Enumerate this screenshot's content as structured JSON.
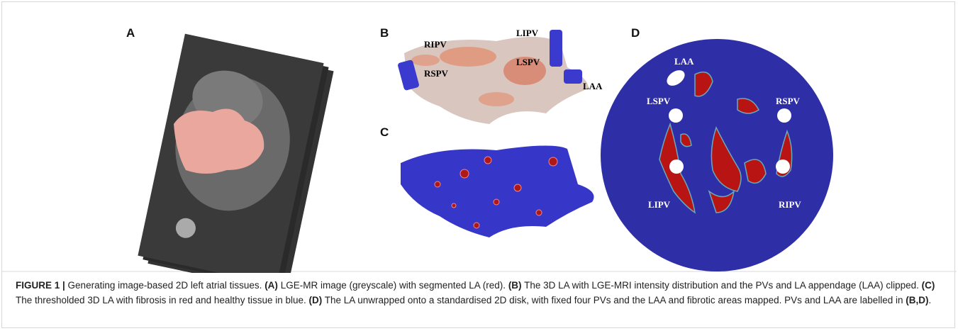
{
  "figure": {
    "panels": {
      "A": {
        "label": "A"
      },
      "B": {
        "label": "B",
        "annotations": [
          "RIPV",
          "LIPV",
          "LSPV",
          "RSPV",
          "LAA"
        ]
      },
      "C": {
        "label": "C"
      },
      "D": {
        "label": "D",
        "annotations": [
          "LAA",
          "LSPV",
          "RSPV",
          "LIPV",
          "RIPV"
        ]
      }
    },
    "caption": [
      {
        "text": "FIGURE 1 | ",
        "bold": true
      },
      {
        "text": "Generating image-based 2D left atrial tissues. ",
        "bold": false
      },
      {
        "text": "(A)",
        "bold": true
      },
      {
        "text": " LGE-MR image (greyscale) with segmented LA (red). ",
        "bold": false
      },
      {
        "text": "(B)",
        "bold": true
      },
      {
        "text": " The 3D LA with LGE-MRI intensity distribution and the PVs and LA appendage (LAA) clipped. ",
        "bold": false
      },
      {
        "text": "(C)",
        "bold": true
      },
      {
        "text": " The thresholded 3D LA with fibrosis in red and healthy tissue in blue. ",
        "bold": false
      },
      {
        "text": "(D)",
        "bold": true
      },
      {
        "text": " The LA unwrapped onto a standardised 2D disk, with fixed four PVs and the LAA and fibrotic areas mapped. PVs and LAA are labelled in ",
        "bold": false
      },
      {
        "text": "(B,D)",
        "bold": true
      },
      {
        "text": ".",
        "bold": false
      }
    ]
  }
}
